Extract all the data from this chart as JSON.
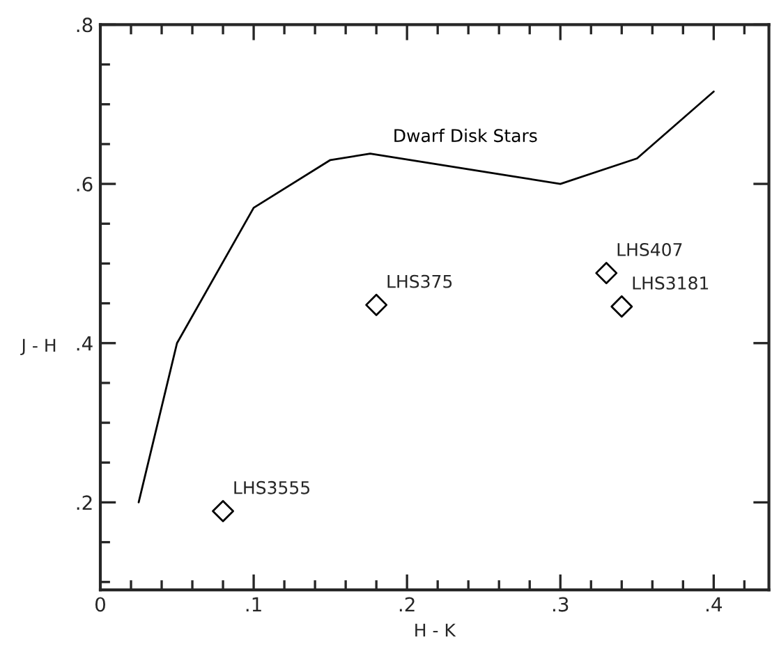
{
  "chart_data": {
    "type": "scatter",
    "xlabel": "H - K",
    "ylabel": "J - H",
    "xlim": [
      0,
      0.436
    ],
    "ylim": [
      0.09,
      0.8
    ],
    "xticks": [
      {
        "value": 0,
        "label": "0"
      },
      {
        "value": 0.02,
        "label": null
      },
      {
        "value": 0.04,
        "label": null
      },
      {
        "value": 0.06,
        "label": null
      },
      {
        "value": 0.08,
        "label": null
      },
      {
        "value": 0.1,
        "label": ".1"
      },
      {
        "value": 0.12,
        "label": null
      },
      {
        "value": 0.14,
        "label": null
      },
      {
        "value": 0.16,
        "label": null
      },
      {
        "value": 0.18,
        "label": null
      },
      {
        "value": 0.2,
        "label": ".2"
      },
      {
        "value": 0.22,
        "label": null
      },
      {
        "value": 0.24,
        "label": null
      },
      {
        "value": 0.26,
        "label": null
      },
      {
        "value": 0.28,
        "label": null
      },
      {
        "value": 0.3,
        "label": ".3"
      },
      {
        "value": 0.32,
        "label": null
      },
      {
        "value": 0.34,
        "label": null
      },
      {
        "value": 0.36,
        "label": null
      },
      {
        "value": 0.38,
        "label": null
      },
      {
        "value": 0.4,
        "label": ".4"
      },
      {
        "value": 0.42,
        "label": null
      }
    ],
    "yticks": [
      {
        "value": 0.1,
        "label": null
      },
      {
        "value": 0.15,
        "label": null
      },
      {
        "value": 0.2,
        "label": ".2"
      },
      {
        "value": 0.25,
        "label": null
      },
      {
        "value": 0.3,
        "label": null
      },
      {
        "value": 0.35,
        "label": null
      },
      {
        "value": 0.4,
        "label": ".4"
      },
      {
        "value": 0.45,
        "label": null
      },
      {
        "value": 0.5,
        "label": null
      },
      {
        "value": 0.55,
        "label": null
      },
      {
        "value": 0.6,
        "label": ".6"
      },
      {
        "value": 0.65,
        "label": null
      },
      {
        "value": 0.7,
        "label": null
      },
      {
        "value": 0.75,
        "label": null
      },
      {
        "value": 0.8,
        "label": ".8"
      }
    ],
    "grid": false,
    "legend": false,
    "series": [
      {
        "name": "Dwarf Disk Stars",
        "type": "line",
        "color": "#000000",
        "marker": "none",
        "line_style": "solid",
        "x": [
          0.025,
          0.05,
          0.1,
          0.15,
          0.176,
          0.3,
          0.35,
          0.4
        ],
        "values": [
          0.2,
          0.4,
          0.57,
          0.63,
          0.638,
          0.6,
          0.632,
          0.716
        ]
      },
      {
        "color": "#000000",
        "marker": "diamond",
        "x": [
          0.08,
          0.18,
          0.33,
          0.34
        ],
        "values": [
          0.189,
          0.448,
          0.488,
          0.446
        ]
      }
    ],
    "annotations": [
      {
        "text": "LHS3555",
        "x": 0.08,
        "y": 0.189
      },
      {
        "text": "LHS375",
        "x": 0.18,
        "y": 0.448
      },
      {
        "text": "LHS407",
        "x": 0.33,
        "y": 0.488
      },
      {
        "text": "LHS3181",
        "x": 0.34,
        "y": 0.446
      }
    ]
  }
}
